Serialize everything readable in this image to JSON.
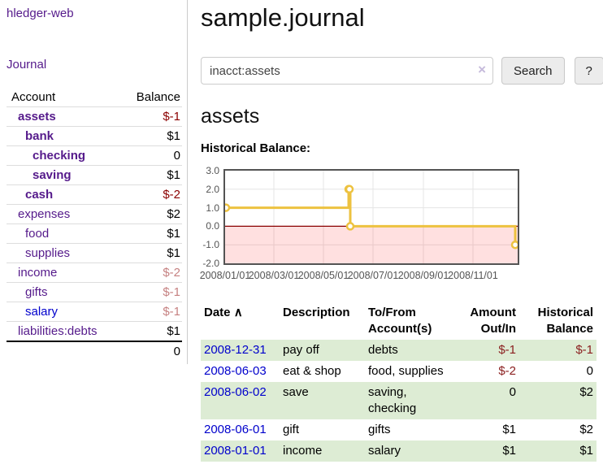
{
  "app": {
    "brand": "hledger-web",
    "nav_journal": "Journal"
  },
  "colors": {
    "link_purple": "#551a8b",
    "link_blue": "#0000cc",
    "negative_bold": "#8b0000",
    "negative_muted": "rgba(139,0,0,0.5)",
    "table_negative": "#8b2020",
    "row_stripe_green": "#ddecd4",
    "series_gold": "#edc240",
    "negative_region_pink": "rgba(255,0,0,0.12)",
    "zero_line_red": "#8b0000"
  },
  "sidebar": {
    "headers": {
      "account": "Account",
      "balance": "Balance"
    },
    "rows": [
      {
        "name": "assets",
        "balance": "$-1",
        "level": 0,
        "bold": true,
        "neg": "bold"
      },
      {
        "name": "bank",
        "balance": "$1",
        "level": 1,
        "bold": true
      },
      {
        "name": "checking",
        "balance": "0",
        "level": 2,
        "bold": true
      },
      {
        "name": "saving",
        "balance": "$1",
        "level": 2,
        "bold": true
      },
      {
        "name": "cash",
        "balance": "$-2",
        "level": 1,
        "bold": true,
        "neg": "bold"
      },
      {
        "name": "expenses",
        "balance": "$2",
        "level": 0
      },
      {
        "name": "food",
        "balance": "$1",
        "level": 1
      },
      {
        "name": "supplies",
        "balance": "$1",
        "level": 1
      },
      {
        "name": "income",
        "balance": "$-2",
        "level": 0,
        "neg": "muted"
      },
      {
        "name": "gifts",
        "balance": "$-1",
        "level": 1,
        "neg": "muted"
      },
      {
        "name": "salary",
        "balance": "$-1",
        "level": 1,
        "neg": "muted",
        "blue": true
      },
      {
        "name": "liabilities:debts",
        "balance": "$1",
        "level": 0
      }
    ],
    "total": "0"
  },
  "main": {
    "title": "sample.journal",
    "search": {
      "value": "inacct:assets",
      "clear_icon": "×",
      "button": "Search",
      "help": "?"
    },
    "account_heading": "assets"
  },
  "chart_data": {
    "type": "line",
    "style": "step-after",
    "title": "Historical Balance:",
    "legend": "$",
    "legend_position": "top-right",
    "grid": true,
    "ylim": [
      -2,
      3
    ],
    "y_ticks": [
      3.0,
      2.0,
      1.0,
      0.0,
      -1.0,
      -2.0
    ],
    "x_ticks": [
      "2008/01/01",
      "2008/03/01",
      "2008/05/01",
      "2008/07/01",
      "2008/09/01",
      "2008/11/01"
    ],
    "x_domain_days": 360,
    "series": [
      {
        "name": "$",
        "color": "#edc240",
        "points": [
          {
            "x": "2008-01-01",
            "y": 1
          },
          {
            "x": "2008-06-01",
            "y": 2
          },
          {
            "x": "2008-06-02",
            "y": 2
          },
          {
            "x": "2008-06-03",
            "y": 0
          },
          {
            "x": "2008-12-31",
            "y": -1
          }
        ]
      }
    ]
  },
  "register_table": {
    "headers": {
      "date": "Date",
      "sort_indicator": "∧",
      "description": "Description",
      "accounts_line1": "To/From",
      "accounts_line2": "Account(s)",
      "amount_line1": "Amount",
      "amount_line2": "Out/In",
      "balance_line1": "Historical",
      "balance_line2": "Balance"
    },
    "rows": [
      {
        "date": "2008-12-31",
        "description": "pay off",
        "accounts": "debts",
        "amount": "$-1",
        "amount_neg": true,
        "balance": "$-1",
        "balance_neg": true
      },
      {
        "date": "2008-06-03",
        "description": "eat & shop",
        "accounts": "food, supplies",
        "amount": "$-2",
        "amount_neg": true,
        "balance": "0"
      },
      {
        "date": "2008-06-02",
        "description": "save",
        "accounts": "saving, checking",
        "amount": "0",
        "balance": "$2"
      },
      {
        "date": "2008-06-01",
        "description": "gift",
        "accounts": "gifts",
        "amount": "$1",
        "balance": "$2"
      },
      {
        "date": "2008-01-01",
        "description": "income",
        "accounts": "salary",
        "amount": "$1",
        "balance": "$1"
      }
    ]
  }
}
